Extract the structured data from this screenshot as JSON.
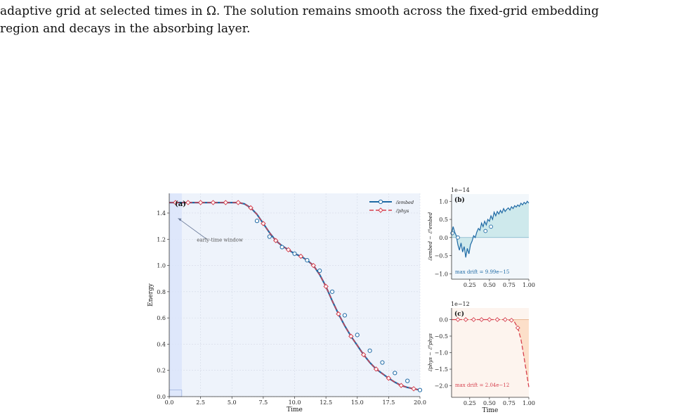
{
  "caption": {
    "line1": "adaptive grid at selected times in Ω. The solution remains smooth across the fixed-grid embedding",
    "line2": "region and decays in the absorbing layer."
  },
  "colors": {
    "embed": "#1f6aa5",
    "phys": "#d6404e",
    "panel_a_bg": "#eef3fb",
    "panel_b_fill": "#bfe3e6",
    "panel_c_fill": "#fbd9bf",
    "window_fill": "#d9e4fb"
  },
  "chart_data": [
    {
      "panel": "a",
      "type": "line",
      "panel_label": "(a)",
      "xlabel": "Time",
      "ylabel": "Energy",
      "xlim": [
        0,
        20
      ],
      "ylim": [
        0,
        1.55
      ],
      "xticks": [
        "0.0",
        "2.5",
        "5.0",
        "7.5",
        "10.0",
        "12.5",
        "15.0",
        "17.5",
        "20.0"
      ],
      "yticks": [
        "0.0",
        "0.2",
        "0.4",
        "0.6",
        "0.8",
        "1.0",
        "1.2",
        "1.4"
      ],
      "grid": true,
      "legend_position": "top-right",
      "legend": [
        "ℰembed",
        "ℰphys"
      ],
      "annotation": "early-time window",
      "highlight_window": [
        0,
        1
      ],
      "series": [
        {
          "name": "ℰembed",
          "x": [
            0,
            1,
            2,
            3,
            4,
            5,
            5.5,
            6,
            6.5,
            7,
            7.5,
            8,
            8.5,
            9,
            9.5,
            10,
            10.5,
            11,
            11.5,
            12,
            12.5,
            13,
            13.5,
            14,
            14.5,
            15,
            15.5,
            16,
            16.5,
            17,
            17.5,
            18,
            18.5,
            19,
            19.5,
            20
          ],
          "y": [
            1.48,
            1.48,
            1.48,
            1.48,
            1.48,
            1.48,
            1.48,
            1.47,
            1.44,
            1.39,
            1.32,
            1.25,
            1.19,
            1.15,
            1.12,
            1.09,
            1.07,
            1.04,
            1.0,
            0.93,
            0.84,
            0.73,
            0.63,
            0.54,
            0.46,
            0.39,
            0.32,
            0.26,
            0.21,
            0.175,
            0.14,
            0.11,
            0.085,
            0.07,
            0.06,
            0.05
          ]
        },
        {
          "name": "ℰphys",
          "x": [
            0,
            1,
            2,
            3,
            4,
            5,
            5.5,
            6,
            6.5,
            7,
            7.5,
            8,
            8.5,
            9,
            9.5,
            10,
            10.5,
            11,
            11.5,
            12,
            12.5,
            13,
            13.5,
            14,
            14.5,
            15,
            15.5,
            16,
            16.5,
            17,
            17.5,
            18,
            18.5,
            19,
            19.5,
            20
          ],
          "y": [
            1.48,
            1.48,
            1.48,
            1.48,
            1.48,
            1.48,
            1.48,
            1.47,
            1.44,
            1.39,
            1.32,
            1.25,
            1.19,
            1.15,
            1.12,
            1.09,
            1.07,
            1.04,
            1.0,
            0.93,
            0.84,
            0.73,
            0.63,
            0.54,
            0.46,
            0.39,
            0.32,
            0.26,
            0.21,
            0.175,
            0.14,
            0.11,
            0.085,
            0.07,
            0.06,
            0.05
          ]
        }
      ],
      "markers_embed": {
        "x": [
          7.0,
          8.0,
          9.0,
          10.0,
          11.0,
          12.0,
          13.0,
          14.0,
          15.0,
          16.0,
          17.0,
          18.0,
          19.0,
          20.0
        ],
        "y": [
          1.34,
          1.22,
          1.14,
          1.09,
          1.04,
          0.96,
          0.8,
          0.62,
          0.47,
          0.35,
          0.26,
          0.18,
          0.12,
          0.05
        ]
      },
      "markers_phys": {
        "x": [
          0.5,
          1.5,
          2.5,
          3.5,
          4.5,
          5.5,
          6.5,
          7.5,
          8.5,
          9.5,
          10.5,
          11.5,
          12.5,
          13.5,
          14.5,
          15.5,
          16.5,
          17.5,
          18.5,
          19.5
        ],
        "y": [
          1.48,
          1.48,
          1.48,
          1.48,
          1.48,
          1.48,
          1.48,
          1.48,
          1.48,
          1.48,
          1.48,
          1.48,
          1.48,
          1.48,
          1.48,
          1.48,
          1.48,
          1.48,
          1.48,
          1.48
        ]
      }
    },
    {
      "panel": "b",
      "type": "line",
      "panel_label": "(b)",
      "scale_label": "1e−14",
      "ylabel": "ℰembed − ℰ⁰embed",
      "xlim": [
        0.02,
        1.0
      ],
      "ylim": [
        -1.15,
        1.2
      ],
      "xticks": [
        "0.25",
        "0.50",
        "0.75",
        "1.00"
      ],
      "yticks": [
        "1.0",
        "0.5",
        "0.0",
        "−0.5",
        "−1.0"
      ],
      "annotation": "max drift = 9.99e−15",
      "series": [
        {
          "name": "",
          "x": [
            0.02,
            0.04,
            0.06,
            0.08,
            0.1,
            0.12,
            0.14,
            0.16,
            0.18,
            0.2,
            0.22,
            0.24,
            0.26,
            0.28,
            0.3,
            0.32,
            0.34,
            0.36,
            0.38,
            0.4,
            0.42,
            0.44,
            0.46,
            0.48,
            0.5,
            0.52,
            0.54,
            0.56,
            0.58,
            0.6,
            0.62,
            0.64,
            0.66,
            0.68,
            0.7,
            0.72,
            0.74,
            0.76,
            0.78,
            0.8,
            0.82,
            0.84,
            0.86,
            0.88,
            0.9,
            0.92,
            0.94,
            0.96,
            0.98,
            1.0
          ],
          "y": [
            0.1,
            0.3,
            0.15,
            0.05,
            -0.2,
            -0.35,
            -0.15,
            -0.4,
            -0.25,
            -0.55,
            -0.3,
            -0.45,
            -0.2,
            -0.1,
            0.05,
            0.0,
            0.15,
            0.25,
            0.2,
            0.4,
            0.3,
            0.45,
            0.35,
            0.5,
            0.45,
            0.6,
            0.5,
            0.7,
            0.6,
            0.72,
            0.65,
            0.75,
            0.68,
            0.8,
            0.72,
            0.78,
            0.82,
            0.76,
            0.85,
            0.8,
            0.88,
            0.84,
            0.9,
            0.86,
            0.95,
            0.9,
            0.97,
            0.93,
            1.0,
            0.95
          ]
        }
      ],
      "markers": {
        "x": [
          0.03,
          0.1,
          0.45,
          0.52
        ],
        "y": [
          0.12,
          0.0,
          0.18,
          0.3
        ]
      }
    },
    {
      "panel": "c",
      "type": "line",
      "panel_label": "(c)",
      "scale_label": "1e−12",
      "xlabel": "Time",
      "ylabel": "ℰphys − ℰ⁰phys",
      "xlim": [
        0.02,
        1.0
      ],
      "ylim": [
        -2.35,
        0.35
      ],
      "xticks": [
        "0.25",
        "0.50",
        "0.75",
        "1.00"
      ],
      "yticks": [
        "0.0",
        "−0.5",
        "−1.0",
        "−1.5",
        "−2.0"
      ],
      "annotation": "max drift = 2.04e−12",
      "series": [
        {
          "name": "",
          "x": [
            0.02,
            0.1,
            0.2,
            0.3,
            0.4,
            0.5,
            0.6,
            0.7,
            0.78,
            0.82,
            0.86,
            0.9,
            0.93,
            0.96,
            0.98,
            1.0
          ],
          "y": [
            0,
            0,
            0,
            0,
            0,
            0,
            0,
            0,
            -0.02,
            -0.08,
            -0.25,
            -0.6,
            -1.0,
            -1.45,
            -1.75,
            -2.04
          ]
        }
      ],
      "markers": {
        "x": [
          0.1,
          0.2,
          0.3,
          0.4,
          0.5,
          0.6,
          0.7,
          0.78,
          0.86
        ],
        "y": [
          0,
          0,
          0,
          0,
          0,
          0,
          0,
          -0.02,
          -0.25
        ]
      }
    }
  ]
}
